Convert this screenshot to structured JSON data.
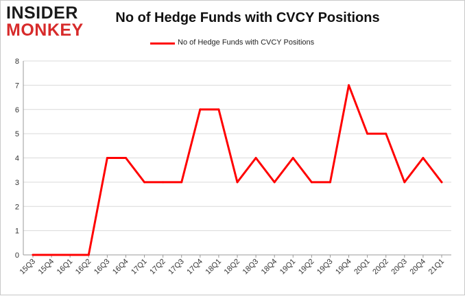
{
  "logo": {
    "line1": "INSIDER",
    "line2": "MONKEY"
  },
  "chart_data": {
    "type": "line",
    "title": "No of Hedge Funds with CVCY Positions",
    "xlabel": "",
    "ylabel": "",
    "categories": [
      "15Q3",
      "15Q4",
      "16Q1",
      "16Q2",
      "16Q3",
      "16Q4",
      "17Q1",
      "17Q2",
      "17Q3",
      "17Q4",
      "18Q1",
      "18Q2",
      "18Q3",
      "18Q4",
      "19Q1",
      "19Q2",
      "19Q3",
      "19Q4",
      "20Q1",
      "20Q2",
      "20Q3",
      "20Q4",
      "21Q1"
    ],
    "series": [
      {
        "name": "No of Hedge Funds with CVCY Positions",
        "color": "#ff0000",
        "values": [
          0,
          0,
          0,
          0,
          4,
          4,
          3,
          3,
          3,
          6,
          6,
          3,
          4,
          3,
          4,
          3,
          3,
          7,
          5,
          5,
          3,
          4,
          3
        ]
      }
    ],
    "ylim": [
      0,
      8
    ],
    "yticks": [
      0,
      1,
      2,
      3,
      4,
      5,
      6,
      7,
      8
    ],
    "grid": true,
    "legend_position": "top-center"
  }
}
